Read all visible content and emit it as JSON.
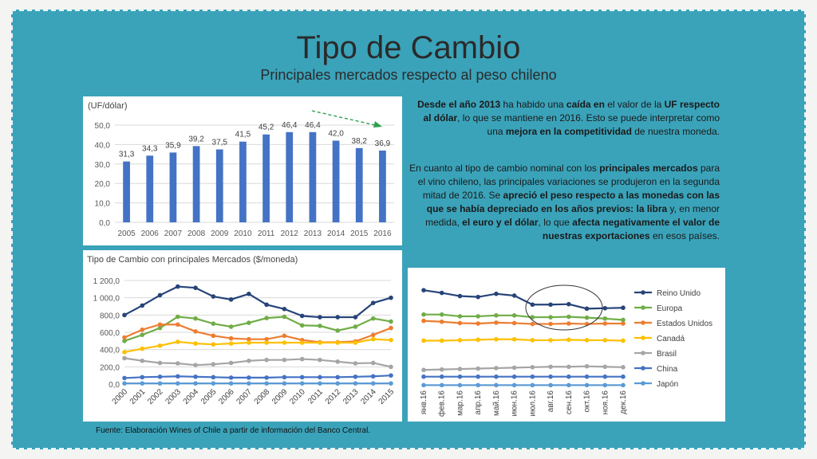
{
  "slide": {
    "title": "Tipo de Cambio",
    "subtitle": "Principales mercados respecto al peso chileno",
    "source": "Fuente: Elaboración Wines of Chile a partir de información del Banco Central."
  },
  "paragraph1": [
    {
      "t": "Desde el año 2013",
      "b": true
    },
    {
      "t": " ha habido una ",
      "b": false
    },
    {
      "t": "caída en",
      "b": true
    },
    {
      "t": " el valor de la ",
      "b": false
    },
    {
      "t": "UF respecto al dólar",
      "b": true
    },
    {
      "t": ", lo que se mantiene en 2016. Esto se puede interpretar como una ",
      "b": false
    },
    {
      "t": "mejora en la competitividad",
      "b": true
    },
    {
      "t": " de nuestra moneda.",
      "b": false
    }
  ],
  "paragraph2": [
    {
      "t": "En cuanto al tipo de cambio nominal con los ",
      "b": false
    },
    {
      "t": "principales mercados",
      "b": true
    },
    {
      "t": " para el vino chileno, las principales variaciones se produjeron en la segunda mitad de 2016. Se ",
      "b": false
    },
    {
      "t": "apreció el peso respecto a las monedas con las que se había depreciado en los años previos: la libra",
      "b": true
    },
    {
      "t": " y, en menor medida, ",
      "b": false
    },
    {
      "t": "el euro y el dólar",
      "b": true
    },
    {
      "t": ", lo que ",
      "b": false
    },
    {
      "t": "afecta negativamente el valor de nuestras exportaciones",
      "b": true
    },
    {
      "t": " en esos países.",
      "b": false
    }
  ],
  "chart_data": [
    {
      "type": "bar",
      "title": "(UF/dólar)",
      "categories": [
        "2005",
        "2006",
        "2007",
        "2008",
        "2009",
        "2010",
        "2011",
        "2012",
        "2013",
        "2014",
        "2015",
        "2016"
      ],
      "values": [
        31.3,
        34.3,
        35.9,
        39.2,
        37.5,
        41.5,
        45.2,
        46.4,
        46.4,
        42.0,
        38.2,
        36.9
      ],
      "labels": [
        "31,3",
        "34,3",
        "35,9",
        "39,2",
        "37,5",
        "41,5",
        "45,2",
        "46,4",
        "46,4",
        "42,0",
        "38,2",
        "36,9"
      ],
      "ylim": [
        0,
        50
      ],
      "yticks": [
        "0,0",
        "10,0",
        "20,0",
        "30,0",
        "40,0",
        "50,0"
      ],
      "color": "#4472c4"
    },
    {
      "type": "line",
      "title": "Tipo de Cambio con principales Mercados ($/moneda)",
      "categories": [
        "2000",
        "2001",
        "2002",
        "2003",
        "2004",
        "2005",
        "2006",
        "2007",
        "2008",
        "2009",
        "2010",
        "2011",
        "2012",
        "2013",
        "2014",
        "2015"
      ],
      "ylim": [
        0,
        1200
      ],
      "yticks": [
        "0,0",
        "200,0",
        "400,0",
        "600,0",
        "800,0",
        "1 000,0",
        "1 200,0"
      ],
      "series": [
        {
          "color": "#264478",
          "values": [
            800,
            910,
            1030,
            1130,
            1115,
            1015,
            980,
            1045,
            920,
            870,
            790,
            775,
            775,
            775,
            940,
            1000
          ]
        },
        {
          "color": "#70ad47",
          "values": [
            500,
            570,
            650,
            780,
            760,
            700,
            665,
            710,
            765,
            780,
            680,
            675,
            620,
            665,
            760,
            725
          ]
        },
        {
          "color": "#ed7d31",
          "values": [
            540,
            630,
            690,
            690,
            610,
            560,
            530,
            520,
            520,
            560,
            510,
            485,
            485,
            495,
            570,
            650
          ]
        },
        {
          "color": "#ffc000",
          "values": [
            370,
            410,
            445,
            490,
            470,
            460,
            470,
            480,
            480,
            480,
            480,
            480,
            480,
            480,
            520,
            510
          ]
        },
        {
          "color": "#a5a5a5",
          "values": [
            300,
            270,
            245,
            240,
            220,
            230,
            245,
            270,
            280,
            280,
            290,
            280,
            260,
            240,
            245,
            200
          ]
        },
        {
          "color": "#4472c4",
          "values": [
            70,
            80,
            85,
            90,
            85,
            80,
            75,
            75,
            75,
            80,
            80,
            80,
            80,
            85,
            90,
            100
          ]
        },
        {
          "color": "#5b9bd5",
          "values": [
            8,
            8,
            8,
            8,
            8,
            8,
            8,
            8,
            8,
            8,
            8,
            8,
            8,
            8,
            8,
            8
          ]
        }
      ]
    },
    {
      "type": "line",
      "categories": [
        "янв.16",
        "фев.16",
        "мар.16",
        "апр.16",
        "май.16",
        "июн.16",
        "июл.16",
        "авг.16",
        "сен.16",
        "окт.16",
        "ноя.16",
        "дек.16"
      ],
      "ylim": [
        0,
        1150
      ],
      "series": [
        {
          "name": "Reino Unido",
          "color": "#264478",
          "values": [
            1060,
            1030,
            995,
            985,
            1020,
            1000,
            900,
            900,
            905,
            855,
            860,
            865
          ]
        },
        {
          "name": "Europa",
          "color": "#70ad47",
          "values": [
            790,
            790,
            770,
            770,
            780,
            780,
            760,
            760,
            765,
            755,
            745,
            730
          ]
        },
        {
          "name": "Estados Unidos",
          "color": "#ed7d31",
          "values": [
            720,
            710,
            695,
            690,
            700,
            695,
            685,
            685,
            690,
            685,
            690,
            690
          ]
        },
        {
          "name": "Canadá",
          "color": "#ffc000",
          "values": [
            500,
            500,
            505,
            510,
            515,
            515,
            505,
            505,
            510,
            505,
            505,
            500
          ]
        },
        {
          "name": "Brasil",
          "color": "#a5a5a5",
          "values": [
            175,
            180,
            185,
            190,
            195,
            200,
            205,
            210,
            210,
            215,
            210,
            205
          ]
        },
        {
          "name": "China",
          "color": "#4472c4",
          "values": [
            100,
            100,
            100,
            100,
            100,
            100,
            100,
            100,
            100,
            100,
            100,
            100
          ]
        },
        {
          "name": "Japón",
          "color": "#5b9bd5",
          "values": [
            6,
            6,
            6,
            6,
            6,
            6,
            6,
            6,
            6,
            6,
            6,
            6
          ]
        }
      ]
    }
  ]
}
